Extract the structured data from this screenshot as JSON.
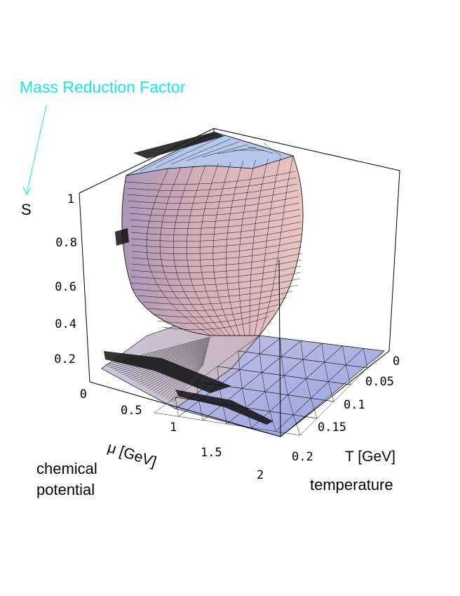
{
  "chart_data": {
    "type": "surface3d",
    "annotation": "Mass Reduction Factor",
    "z_axis": {
      "label": "S",
      "ticks": [
        "0",
        "0.2",
        "0.4",
        "0.6",
        "0.8",
        "1"
      ],
      "range": [
        0,
        1
      ]
    },
    "mu_axis": {
      "label": "μ [GeV]",
      "caption_line1": "chemical",
      "caption_line2": "potential",
      "ticks": [
        "0.5",
        "1",
        "1.5",
        "2"
      ],
      "range": [
        0,
        2
      ]
    },
    "t_axis": {
      "label": "T [GeV]",
      "caption": "temperature",
      "ticks": [
        "0",
        "0.05",
        "0.1",
        "0.15",
        "0.2"
      ],
      "range": [
        0,
        0.2
      ]
    },
    "colors": {
      "annotation": "#19e6e6",
      "surface_top": "#b7c7ec",
      "surface_wall": "#d9b3b8",
      "surface_floor": "#aeb6e6"
    }
  }
}
